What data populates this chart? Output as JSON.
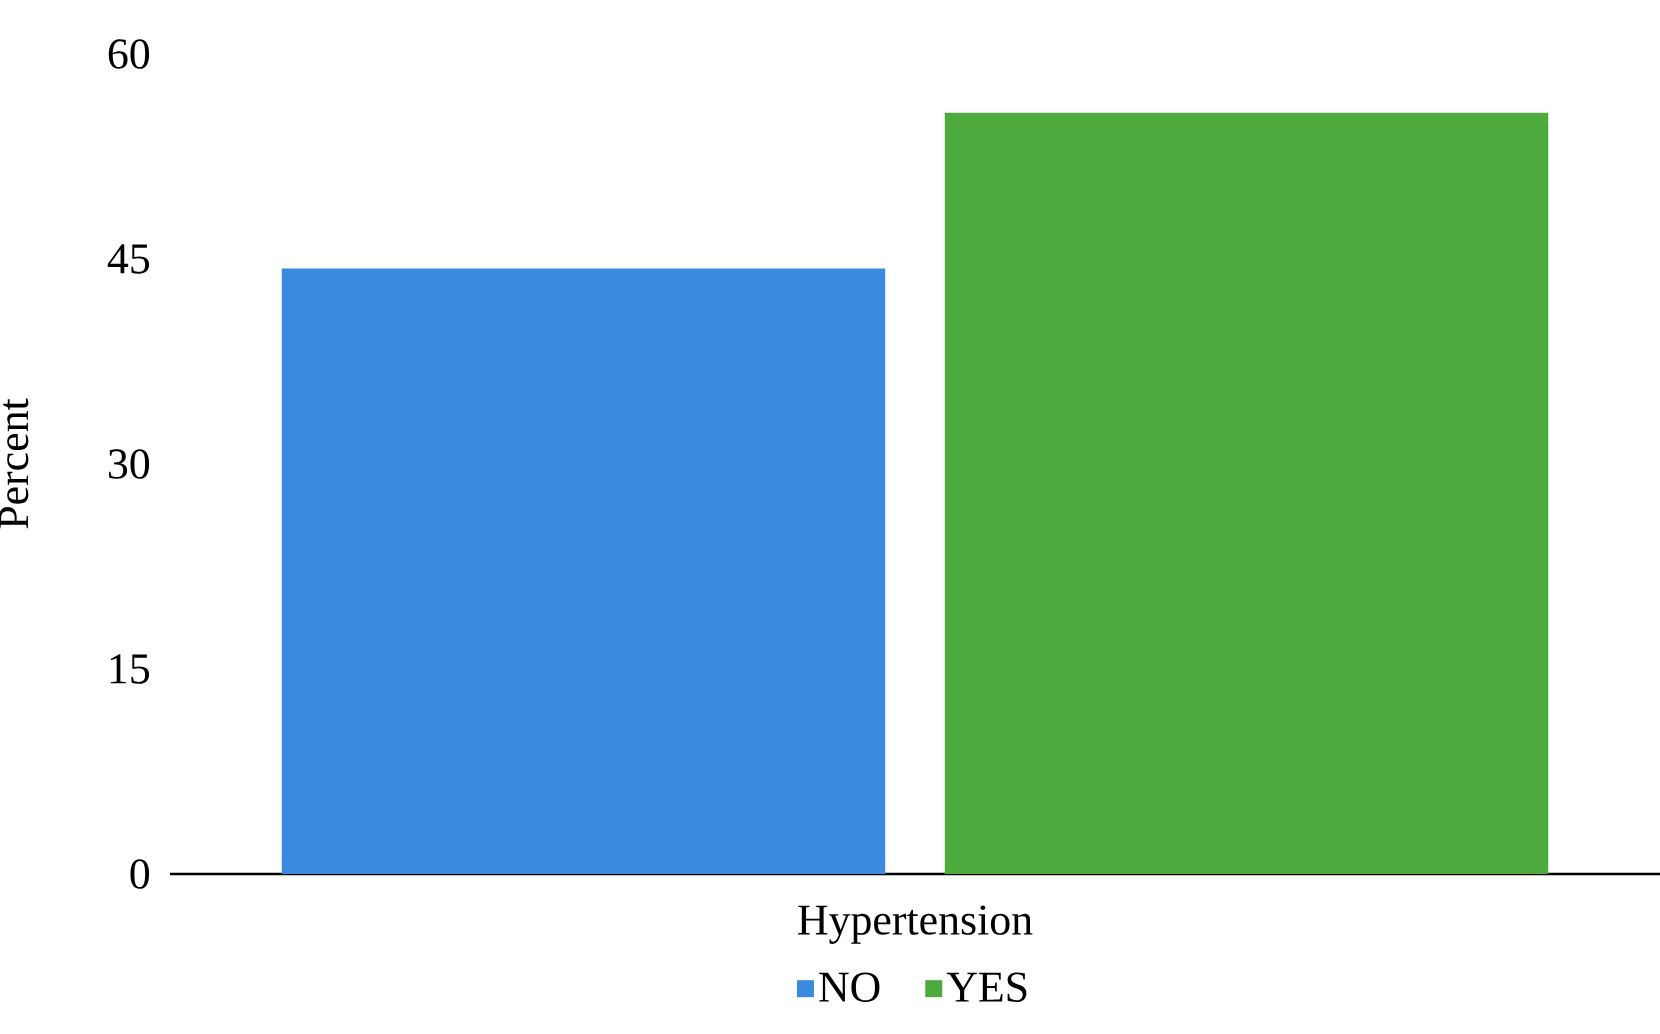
{
  "chart_data": {
    "type": "bar",
    "categories": [
      null
    ],
    "xlabel": "Hypertension",
    "ylabel": "Percent",
    "ylim": [
      0,
      60
    ],
    "yticks": [
      0,
      15,
      30,
      45,
      60
    ],
    "legend": "bottom",
    "series": [
      {
        "name": "NO",
        "color": "#3a8ae0",
        "values": [
          44.3
        ]
      },
      {
        "name": "YES",
        "color": "#4cab3c",
        "values": [
          55.7
        ]
      }
    ]
  }
}
